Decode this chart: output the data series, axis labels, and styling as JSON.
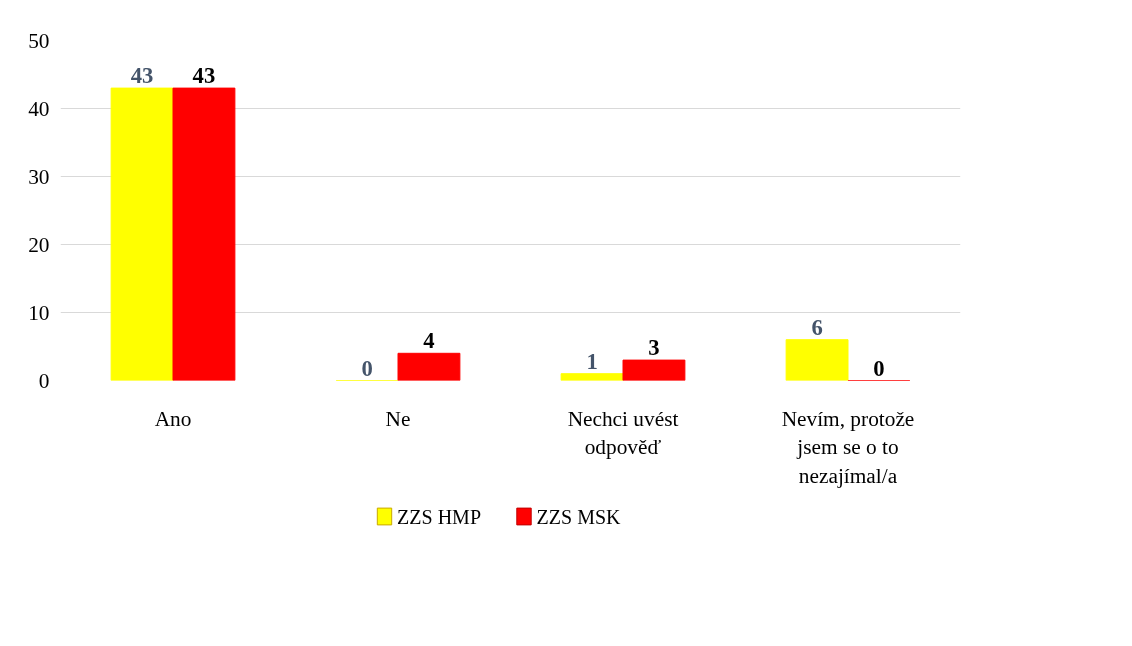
{
  "chart_data": {
    "type": "bar",
    "categories": [
      "Ano",
      "Ne",
      "Nechci uvést odpověď",
      "Nevím, protože jsem se o to nezajímal/a"
    ],
    "series": [
      {
        "name": "ZZS HMP",
        "color": "#ffff00",
        "values": [
          43,
          0,
          1,
          6
        ]
      },
      {
        "name": "ZZS MSK",
        "color": "#ff0000",
        "values": [
          43,
          4,
          3,
          0
        ]
      }
    ],
    "ylim": [
      0,
      50
    ],
    "yticks": [
      0,
      10,
      20,
      30,
      40,
      50
    ],
    "grid": "y",
    "legend": "bottom",
    "data_labels": true
  }
}
